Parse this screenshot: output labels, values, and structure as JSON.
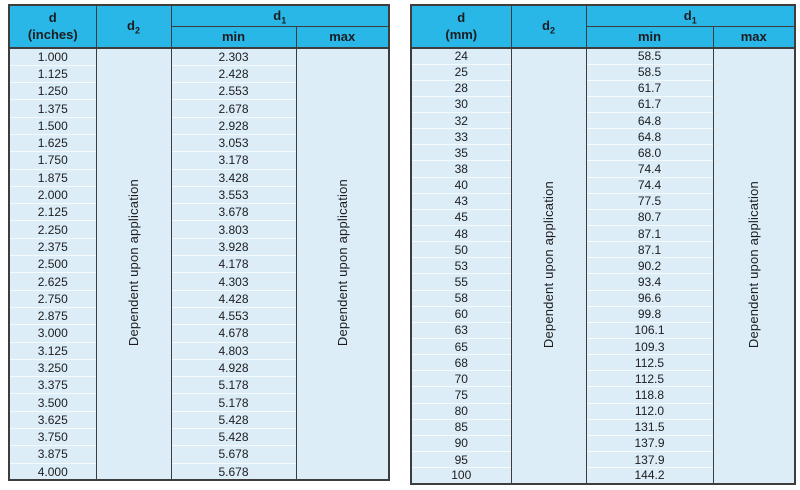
{
  "colors": {
    "header_bg": "#29b7e8",
    "row_bg": "#dcedf8",
    "row_separator": "#f5fafd",
    "border": "#3d3d3d",
    "text": "#1c1c1e"
  },
  "headers": {
    "d2_base": "d",
    "d2_sub": "2",
    "d1_base": "d",
    "d1_sub": "1",
    "min": "min",
    "max": "max"
  },
  "tables": [
    {
      "id": "inches",
      "d_label_line1": "d",
      "d_label_line2": "(inches)",
      "dependent_text": "Dependent upon application",
      "rows": [
        [
          "1.000",
          "2.303"
        ],
        [
          "1.125",
          "2.428"
        ],
        [
          "1.250",
          "2.553"
        ],
        [
          "1.375",
          "2.678"
        ],
        [
          "1.500",
          "2.928"
        ],
        [
          "1.625",
          "3.053"
        ],
        [
          "1.750",
          "3.178"
        ],
        [
          "1.875",
          "3.428"
        ],
        [
          "2.000",
          "3.553"
        ],
        [
          "2.125",
          "3.678"
        ],
        [
          "2.250",
          "3.803"
        ],
        [
          "2.375",
          "3.928"
        ],
        [
          "2.500",
          "4.178"
        ],
        [
          "2.625",
          "4.303"
        ],
        [
          "2.750",
          "4.428"
        ],
        [
          "2.875",
          "4.553"
        ],
        [
          "3.000",
          "4.678"
        ],
        [
          "3.125",
          "4.803"
        ],
        [
          "3.250",
          "4.928"
        ],
        [
          "3.375",
          "5.178"
        ],
        [
          "3.500",
          "5.178"
        ],
        [
          "3.625",
          "5.428"
        ],
        [
          "3.750",
          "5.428"
        ],
        [
          "3.875",
          "5.678"
        ],
        [
          "4.000",
          "5.678"
        ]
      ]
    },
    {
      "id": "mm",
      "d_label_line1": "d",
      "d_label_line2": "(mm)",
      "dependent_text": "Dependent upon application",
      "rows": [
        [
          "24",
          "58.5"
        ],
        [
          "25",
          "58.5"
        ],
        [
          "28",
          "61.7"
        ],
        [
          "30",
          "61.7"
        ],
        [
          "32",
          "64.8"
        ],
        [
          "33",
          "64.8"
        ],
        [
          "35",
          "68.0"
        ],
        [
          "38",
          "74.4"
        ],
        [
          "40",
          "74.4"
        ],
        [
          "43",
          "77.5"
        ],
        [
          "45",
          "80.7"
        ],
        [
          "48",
          "87.1"
        ],
        [
          "50",
          "87.1"
        ],
        [
          "53",
          "90.2"
        ],
        [
          "55",
          "93.4"
        ],
        [
          "58",
          "96.6"
        ],
        [
          "60",
          "99.8"
        ],
        [
          "63",
          "106.1"
        ],
        [
          "65",
          "109.3"
        ],
        [
          "68",
          "112.5"
        ],
        [
          "70",
          "112.5"
        ],
        [
          "75",
          "118.8"
        ],
        [
          "80",
          "112.0"
        ],
        [
          "85",
          "131.5"
        ],
        [
          "90",
          "137.9"
        ],
        [
          "95",
          "137.9"
        ],
        [
          "100",
          "144.2"
        ]
      ]
    }
  ]
}
